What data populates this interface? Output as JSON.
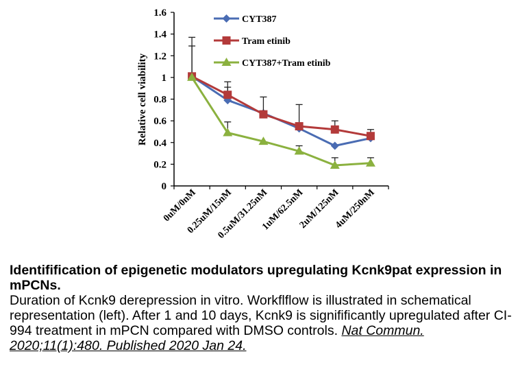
{
  "chart_data": {
    "type": "line",
    "title": "",
    "xlabel": "",
    "ylabel": "Relative  cell viability",
    "ylim": [
      0,
      1.6
    ],
    "yticks": [
      "0",
      "0.2",
      "0.4",
      "0.6",
      "0.8",
      "1",
      "1.2",
      "1.4",
      "1.6"
    ],
    "categories": [
      "0uM/0nM",
      "0.25uM/15nM",
      "0.5uM/31.25nM",
      "1uM/62.5nM",
      "2uM/125nM",
      "4uM/250nM"
    ],
    "legend_position": "top-right",
    "series": [
      {
        "name": "CYT387",
        "color": "#4a6cb3",
        "marker": "diamond",
        "values": [
          1.01,
          0.79,
          0.67,
          0.53,
          0.37,
          0.44
        ],
        "error": [
          0.28,
          0.12,
          0.0,
          0.0,
          0.0,
          0.0
        ]
      },
      {
        "name": "Tram etinib",
        "color": "#b33a3a",
        "marker": "square",
        "values": [
          1.01,
          0.84,
          0.66,
          0.55,
          0.52,
          0.46
        ],
        "error": [
          0.36,
          0.12,
          0.16,
          0.2,
          0.08,
          0.06
        ]
      },
      {
        "name": "CYT387+Tram etinib",
        "color": "#8bb13f",
        "marker": "triangle",
        "values": [
          1.0,
          0.49,
          0.41,
          0.32,
          0.19,
          0.21
        ],
        "error": [
          0.0,
          0.1,
          0.0,
          0.05,
          0.07,
          0.05
        ]
      }
    ]
  },
  "caption": {
    "title": "Identifification of epigenetic modulators upregulating Kcnk9pat expression in mPCNs.",
    "body": "Duration of Kcnk9 derepression in vitro. Workflflow is illustrated in schematical representation (left). After 1 and 10 days, Kcnk9 is signifificantly upregulated after CI-994 treatment in mPCN compared with DMSO controls. ",
    "citation": "Nat Commun. 2020;11(1):480. Published 2020 Jan 24."
  }
}
